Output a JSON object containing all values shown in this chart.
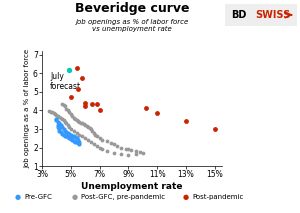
{
  "title": "Beveridge curve",
  "subtitle": "job openings as % of labor force\nvs unemployment rate",
  "xlabel": "Unemployment rate",
  "ylabel": "Job openings as a % of labor force",
  "annotation": "July\nforecast",
  "xlim": [
    3,
    15.5
  ],
  "ylim": [
    1,
    7.2
  ],
  "xticks": [
    3,
    5,
    7,
    9,
    11,
    13,
    15
  ],
  "yticks": [
    1,
    2,
    3,
    4,
    5,
    6,
    7
  ],
  "pre_gfc": [
    [
      4.0,
      3.55
    ],
    [
      4.1,
      3.2
    ],
    [
      4.1,
      3.1
    ],
    [
      4.2,
      3.0
    ],
    [
      4.2,
      2.9
    ],
    [
      4.3,
      2.85
    ],
    [
      4.4,
      2.75
    ],
    [
      4.5,
      2.7
    ],
    [
      4.6,
      2.65
    ],
    [
      4.7,
      2.6
    ],
    [
      4.8,
      2.55
    ],
    [
      4.9,
      2.5
    ],
    [
      5.0,
      2.45
    ],
    [
      5.1,
      2.4
    ],
    [
      5.2,
      2.35
    ],
    [
      5.3,
      2.3
    ],
    [
      5.4,
      2.28
    ],
    [
      5.5,
      2.25
    ],
    [
      5.6,
      2.22
    ],
    [
      5.6,
      2.3
    ],
    [
      5.5,
      2.4
    ],
    [
      5.4,
      2.5
    ],
    [
      5.3,
      2.55
    ],
    [
      5.2,
      2.6
    ],
    [
      5.1,
      2.65
    ],
    [
      5.0,
      2.7
    ],
    [
      4.9,
      2.75
    ],
    [
      4.8,
      2.8
    ],
    [
      4.7,
      2.85
    ],
    [
      4.6,
      2.9
    ],
    [
      4.5,
      3.0
    ],
    [
      4.4,
      3.1
    ],
    [
      4.3,
      3.2
    ],
    [
      4.2,
      3.3
    ],
    [
      4.1,
      3.4
    ],
    [
      4.0,
      3.5
    ]
  ],
  "post_gfc": [
    [
      4.4,
      4.35
    ],
    [
      4.5,
      4.3
    ],
    [
      4.6,
      4.25
    ],
    [
      4.7,
      4.1
    ],
    [
      4.8,
      4.0
    ],
    [
      4.9,
      3.9
    ],
    [
      5.0,
      3.8
    ],
    [
      5.1,
      3.7
    ],
    [
      5.2,
      3.6
    ],
    [
      5.3,
      3.55
    ],
    [
      5.4,
      3.5
    ],
    [
      5.5,
      3.45
    ],
    [
      5.6,
      3.4
    ],
    [
      5.7,
      3.35
    ],
    [
      5.8,
      3.3
    ],
    [
      5.9,
      3.25
    ],
    [
      6.0,
      3.2
    ],
    [
      6.1,
      3.15
    ],
    [
      6.2,
      3.1
    ],
    [
      6.3,
      3.05
    ],
    [
      6.4,
      3.0
    ],
    [
      6.5,
      2.9
    ],
    [
      6.6,
      2.8
    ],
    [
      6.7,
      2.7
    ],
    [
      6.8,
      2.6
    ],
    [
      7.0,
      2.5
    ],
    [
      7.2,
      2.4
    ],
    [
      7.5,
      2.35
    ],
    [
      7.8,
      2.25
    ],
    [
      8.0,
      2.2
    ],
    [
      8.2,
      2.1
    ],
    [
      8.5,
      2.0
    ],
    [
      8.8,
      1.95
    ],
    [
      9.0,
      1.9
    ],
    [
      9.2,
      1.85
    ],
    [
      9.5,
      1.8
    ],
    [
      9.8,
      1.75
    ],
    [
      10.0,
      1.7
    ],
    [
      9.5,
      1.65
    ],
    [
      9.0,
      1.6
    ],
    [
      8.5,
      1.65
    ],
    [
      8.0,
      1.7
    ],
    [
      7.5,
      1.8
    ],
    [
      7.2,
      1.9
    ],
    [
      7.0,
      2.0
    ],
    [
      6.8,
      2.1
    ],
    [
      6.6,
      2.2
    ],
    [
      6.4,
      2.3
    ],
    [
      6.2,
      2.4
    ],
    [
      6.0,
      2.5
    ],
    [
      5.8,
      2.6
    ],
    [
      5.6,
      2.7
    ],
    [
      5.4,
      2.8
    ],
    [
      5.2,
      2.9
    ],
    [
      5.0,
      3.0
    ],
    [
      4.9,
      3.1
    ],
    [
      4.8,
      3.2
    ],
    [
      4.7,
      3.3
    ],
    [
      4.6,
      3.4
    ],
    [
      4.5,
      3.5
    ],
    [
      4.4,
      3.55
    ],
    [
      4.3,
      3.6
    ],
    [
      4.2,
      3.65
    ],
    [
      4.1,
      3.7
    ],
    [
      4.0,
      3.75
    ],
    [
      3.9,
      3.8
    ],
    [
      3.8,
      3.85
    ],
    [
      3.7,
      3.9
    ],
    [
      3.6,
      3.92
    ],
    [
      3.5,
      3.95
    ]
  ],
  "post_pandemic": [
    [
      5.0,
      4.7
    ],
    [
      5.5,
      5.15
    ],
    [
      6.0,
      4.4
    ],
    [
      6.0,
      4.25
    ],
    [
      6.5,
      4.35
    ],
    [
      5.4,
      6.3
    ],
    [
      5.8,
      5.75
    ],
    [
      6.8,
      4.35
    ],
    [
      7.0,
      4.0
    ],
    [
      10.2,
      4.15
    ],
    [
      13.0,
      3.45
    ],
    [
      15.0,
      3.0
    ],
    [
      11.0,
      3.85
    ]
  ],
  "july_forecast": [
    4.9,
    6.2
  ],
  "pre_gfc_color": "#3399ff",
  "post_gfc_color": "#999999",
  "post_pandemic_color": "#cc2200",
  "july_color": "#00ccbb",
  "bg_color": "#ffffff",
  "logo_bd_color": "#000000",
  "logo_swiss_color": "#cc2200"
}
